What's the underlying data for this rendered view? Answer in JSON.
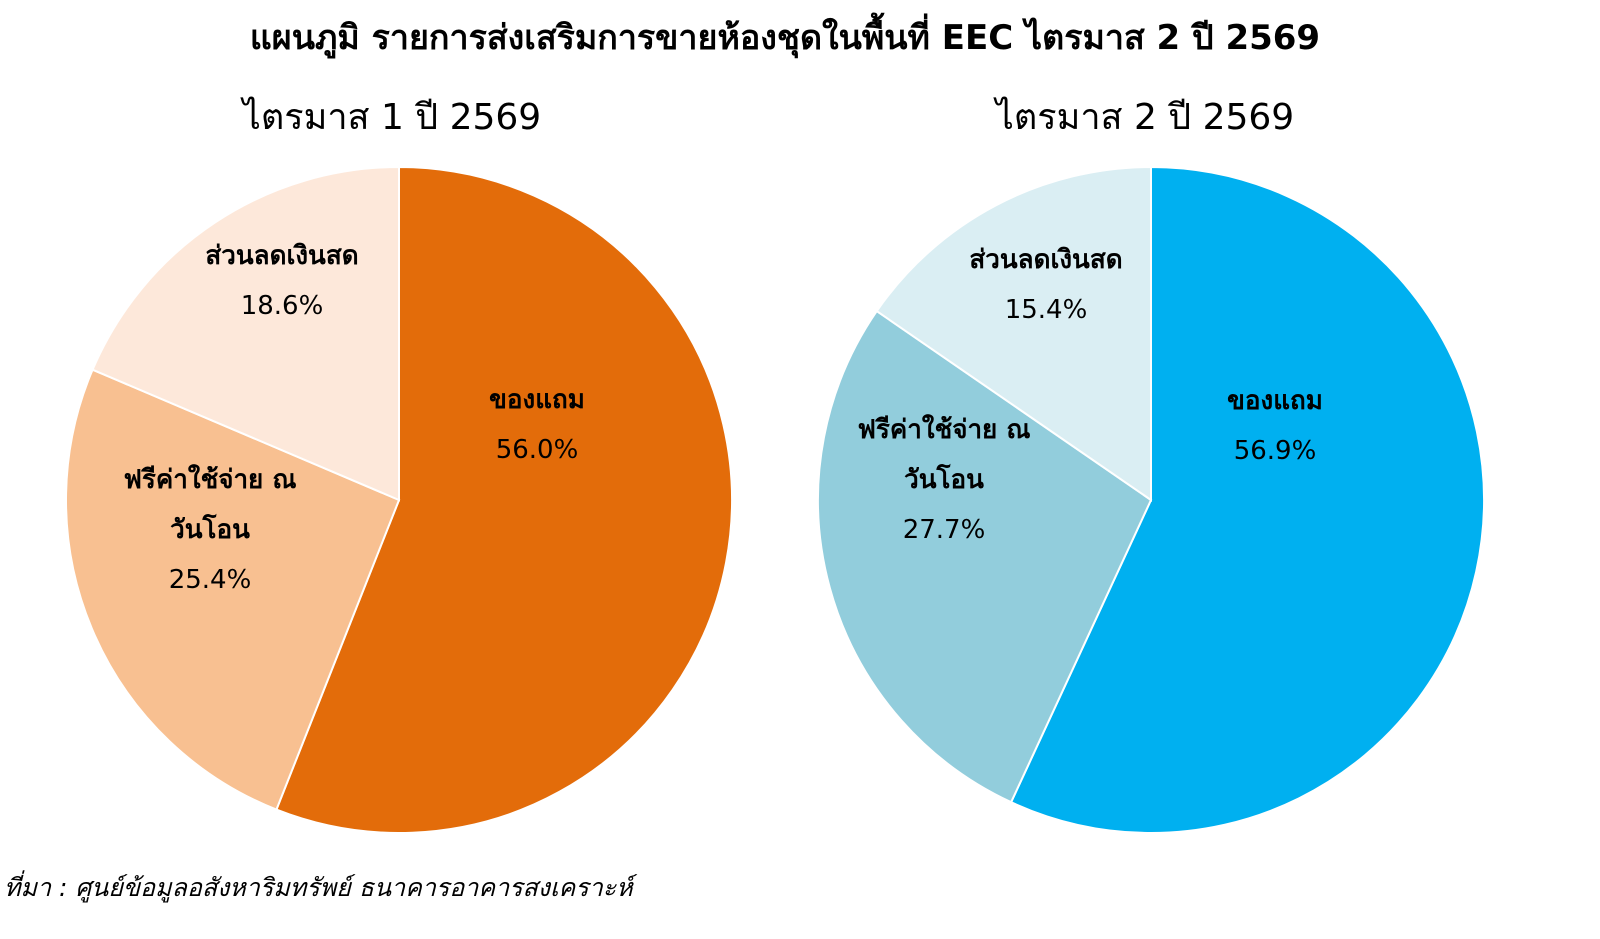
{
  "title": "แผนภูมิ รายการส่งเสริมการขายห้องชุดในพื้นที่ EEC ไตรมาส 2 ปี 2569",
  "chart_data": [
    {
      "type": "pie",
      "title": "ไตรมาส 1 ปี 2569",
      "categories": [
        "ของแถม",
        "ฟรีค่าใช้จ่าย ณ วันโอน",
        "ส่วนลดเงินสด"
      ],
      "values": [
        56.0,
        25.4,
        18.6
      ],
      "value_labels": [
        "56.0%",
        "25.4%",
        "18.6%"
      ],
      "colors": [
        "#e36c0a",
        "#f8c091",
        "#fde8da"
      ]
    },
    {
      "type": "pie",
      "title": "ไตรมาส 2 ปี 2569",
      "categories": [
        "ของแถม",
        "ฟรีค่าใช้จ่าย ณ วันโอน",
        "ส่วนลดเงินสด"
      ],
      "values": [
        56.9,
        27.7,
        15.4
      ],
      "value_labels": [
        "56.9%",
        "27.7%",
        "15.4%"
      ],
      "colors": [
        "#00b0f0",
        "#92cddc",
        "#daeef3"
      ]
    }
  ],
  "source": "ที่มา : ศูนย์ข้อมูลอสังหาริมทรัพย์ ธนาคารอาคารสงเคราะห์"
}
